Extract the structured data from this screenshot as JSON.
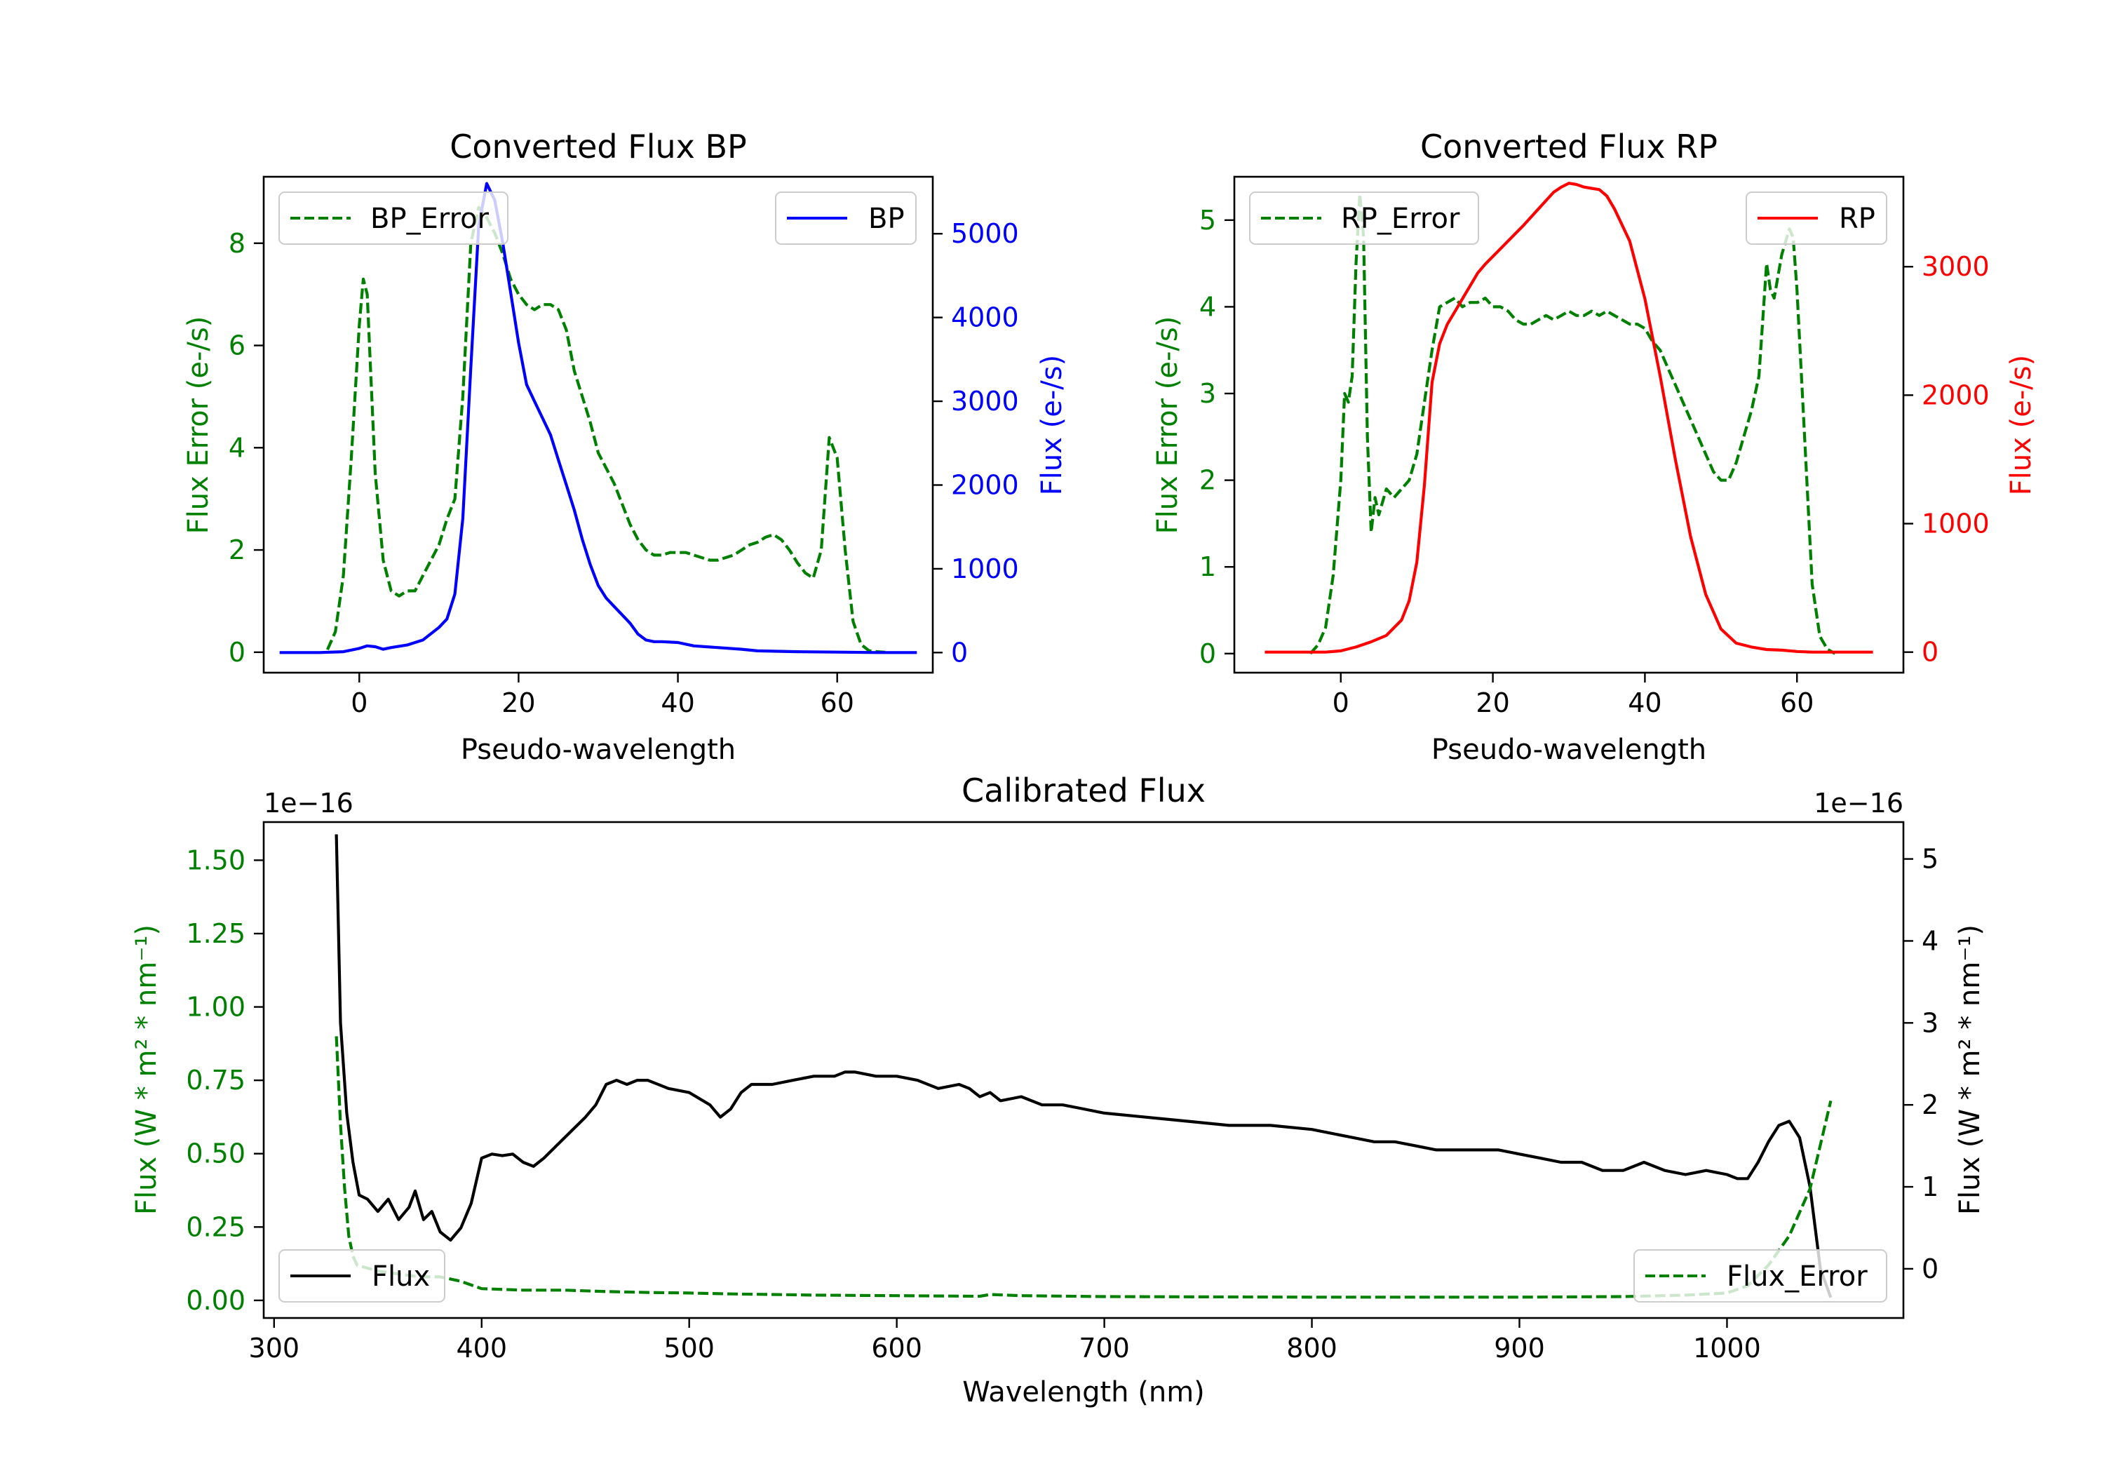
{
  "colors": {
    "error": "#008000",
    "bp": "#0000ff",
    "rp": "#ff0000",
    "flux": "#000000",
    "background": "#ffffff"
  },
  "chart_data": [
    {
      "id": "bp",
      "type": "line",
      "title": "Converted Flux BP",
      "xlabel": "Pseudo-wavelength",
      "ylabel_left": "Flux Error (e-/s)",
      "ylabel_right": "Flux (e-/s)",
      "xlim": [
        -12,
        72
      ],
      "ylim_left": [
        -0.4,
        9.3
      ],
      "ylim_right": [
        -240,
        5680
      ],
      "xticks": [
        0,
        20,
        40,
        60
      ],
      "xtick_labels": [
        "0",
        "20",
        "40",
        "60"
      ],
      "yticks_left": [
        0,
        2,
        4,
        6,
        8
      ],
      "ytick_labels_left": [
        "0",
        "2",
        "4",
        "6",
        "8"
      ],
      "yticks_right": [
        0,
        1000,
        2000,
        3000,
        4000,
        5000
      ],
      "ytick_labels_right": [
        "0",
        "1000",
        "2000",
        "3000",
        "4000",
        "5000"
      ],
      "legend_left": "top-left",
      "legend_right": "top-right",
      "series": [
        {
          "name": "BP_Error",
          "axis": "left",
          "style": "dashed",
          "color": "#008000",
          "x": [
            -4,
            -3,
            -2,
            -1,
            0,
            0.5,
            1,
            2,
            3,
            4,
            5,
            6,
            7,
            8,
            9,
            10,
            11,
            12,
            13,
            14,
            15,
            16,
            17,
            18,
            19,
            20,
            21,
            22,
            23,
            24,
            25,
            26,
            27,
            28,
            29,
            30,
            31,
            32,
            33,
            34,
            35,
            36,
            37,
            38,
            39,
            40,
            41,
            42,
            43,
            44,
            45,
            46,
            47,
            48,
            49,
            50,
            51,
            52,
            53,
            54,
            55,
            56,
            57,
            58,
            59,
            60,
            61,
            62,
            63,
            64,
            65,
            66
          ],
          "y": [
            0.05,
            0.4,
            1.5,
            3.8,
            6.4,
            7.3,
            7.0,
            3.5,
            1.8,
            1.2,
            1.1,
            1.2,
            1.2,
            1.5,
            1.8,
            2.1,
            2.6,
            3.0,
            5.0,
            8.0,
            8.7,
            8.5,
            8.2,
            7.8,
            7.3,
            7.0,
            6.8,
            6.7,
            6.8,
            6.8,
            6.7,
            6.3,
            5.5,
            5.0,
            4.5,
            3.9,
            3.6,
            3.3,
            2.9,
            2.5,
            2.2,
            2.0,
            1.9,
            1.9,
            1.95,
            1.95,
            1.95,
            1.9,
            1.85,
            1.8,
            1.8,
            1.85,
            1.9,
            2.0,
            2.1,
            2.15,
            2.25,
            2.3,
            2.2,
            2.0,
            1.75,
            1.55,
            1.45,
            2.0,
            4.2,
            3.8,
            2.0,
            0.6,
            0.15,
            0.03,
            0.01,
            0.0
          ]
        },
        {
          "name": "BP",
          "axis": "right",
          "style": "solid",
          "color": "#0000ff",
          "x": [
            -10,
            -5,
            -2,
            0,
            1,
            2,
            3,
            4,
            6,
            8,
            10,
            11,
            12,
            13,
            14,
            15,
            16,
            17,
            18,
            19,
            20,
            21,
            22,
            23,
            24,
            25,
            26,
            27,
            28,
            29,
            30,
            31,
            32,
            33,
            34,
            35,
            36,
            37,
            38,
            40,
            42,
            45,
            48,
            50,
            55,
            60,
            65,
            70
          ],
          "y": [
            0,
            0,
            10,
            50,
            80,
            70,
            40,
            60,
            90,
            150,
            300,
            400,
            700,
            1600,
            3400,
            5100,
            5600,
            5400,
            4900,
            4300,
            3700,
            3200,
            3000,
            2800,
            2600,
            2300,
            2000,
            1700,
            1350,
            1050,
            800,
            650,
            550,
            450,
            350,
            220,
            150,
            130,
            130,
            120,
            80,
            60,
            40,
            20,
            10,
            5,
            0,
            0
          ]
        }
      ]
    },
    {
      "id": "rp",
      "type": "line",
      "title": "Converted Flux RP",
      "xlabel": "Pseudo-wavelength",
      "ylabel_left": "Flux Error (e-/s)",
      "ylabel_right": "Flux (e-/s)",
      "xlim": [
        -14,
        74
      ],
      "ylim_left": [
        -0.22,
        5.5
      ],
      "ylim_right": [
        -160,
        3700
      ],
      "xticks": [
        0,
        20,
        40,
        60
      ],
      "xtick_labels": [
        "0",
        "20",
        "40",
        "60"
      ],
      "yticks_left": [
        0,
        1,
        2,
        3,
        4,
        5
      ],
      "ytick_labels_left": [
        "0",
        "1",
        "2",
        "3",
        "4",
        "5"
      ],
      "yticks_right": [
        0,
        1000,
        2000,
        3000
      ],
      "ytick_labels_right": [
        "0",
        "1000",
        "2000",
        "3000"
      ],
      "legend_left": "top-left",
      "legend_right": "top-right",
      "series": [
        {
          "name": "RP_Error",
          "axis": "left",
          "style": "dashed",
          "color": "#008000",
          "x": [
            -4,
            -3,
            -2,
            -1,
            0,
            0.5,
            1,
            1.5,
            2,
            2.5,
            3,
            3.5,
            4,
            4.5,
            5,
            6,
            7,
            8,
            9,
            10,
            11,
            12,
            13,
            14,
            15,
            16,
            17,
            18,
            19,
            20,
            21,
            22,
            23,
            24,
            25,
            26,
            27,
            28,
            29,
            30,
            31,
            32,
            33,
            34,
            35,
            36,
            37,
            38,
            39,
            40,
            41,
            42,
            43,
            44,
            45,
            46,
            47,
            48,
            49,
            50,
            51,
            52,
            53,
            54,
            55,
            56,
            56.5,
            57,
            58,
            59,
            59.5,
            60,
            61,
            62,
            63,
            64,
            65
          ],
          "y": [
            0.0,
            0.1,
            0.3,
            0.9,
            2.0,
            3.0,
            2.9,
            3.2,
            4.5,
            5.3,
            4.8,
            2.5,
            1.4,
            1.8,
            1.6,
            1.9,
            1.8,
            1.9,
            2.0,
            2.3,
            2.9,
            3.5,
            4.0,
            4.05,
            4.1,
            4.0,
            4.05,
            4.05,
            4.1,
            4.0,
            4.0,
            3.95,
            3.85,
            3.8,
            3.8,
            3.85,
            3.9,
            3.85,
            3.9,
            3.95,
            3.9,
            3.9,
            3.95,
            3.9,
            3.95,
            3.9,
            3.85,
            3.8,
            3.8,
            3.75,
            3.6,
            3.5,
            3.3,
            3.1,
            2.9,
            2.7,
            2.5,
            2.3,
            2.1,
            2.0,
            2.0,
            2.2,
            2.5,
            2.8,
            3.2,
            4.5,
            4.2,
            4.1,
            4.6,
            4.9,
            4.8,
            4.2,
            2.5,
            0.8,
            0.2,
            0.05,
            0.0
          ]
        },
        {
          "name": "RP",
          "axis": "right",
          "style": "solid",
          "color": "#ff0000",
          "x": [
            -10,
            -2,
            0,
            2,
            4,
            6,
            8,
            9,
            10,
            11,
            12,
            13,
            14,
            15,
            16,
            17,
            18,
            19,
            20,
            22,
            24,
            26,
            28,
            29,
            30,
            31,
            32,
            33,
            34,
            35,
            36,
            38,
            40,
            42,
            44,
            46,
            48,
            50,
            52,
            54,
            56,
            58,
            60,
            62,
            65,
            70
          ],
          "y": [
            0,
            0,
            10,
            40,
            80,
            130,
            250,
            400,
            700,
            1300,
            2100,
            2400,
            2550,
            2650,
            2750,
            2850,
            2950,
            3020,
            3080,
            3200,
            3320,
            3450,
            3580,
            3620,
            3650,
            3640,
            3620,
            3610,
            3600,
            3550,
            3450,
            3200,
            2750,
            2150,
            1500,
            900,
            450,
            180,
            70,
            40,
            20,
            15,
            5,
            0,
            0,
            0
          ]
        }
      ]
    },
    {
      "id": "calibrated",
      "type": "line",
      "title": "Calibrated Flux",
      "xlabel": "Wavelength (nm)",
      "ylabel_left": "Flux (W * m² * nm⁻¹)",
      "ylabel_right": "Flux (W * m² * nm⁻¹)",
      "scale_left": "1e−16",
      "scale_right": "1e−16",
      "xlim": [
        295,
        1085
      ],
      "ylim_left": [
        -0.06,
        1.63
      ],
      "ylim_right": [
        -0.6,
        5.45
      ],
      "xticks": [
        300,
        400,
        500,
        600,
        700,
        800,
        900,
        1000
      ],
      "xtick_labels": [
        "300",
        "400",
        "500",
        "600",
        "700",
        "800",
        "900",
        "1000"
      ],
      "yticks_left": [
        0,
        0.25,
        0.5,
        0.75,
        1.0,
        1.25,
        1.5
      ],
      "ytick_labels_left": [
        "0.00",
        "0.25",
        "0.50",
        "0.75",
        "1.00",
        "1.25",
        "1.50"
      ],
      "yticks_right": [
        0,
        1,
        2,
        3,
        4,
        5
      ],
      "ytick_labels_right": [
        "0",
        "1",
        "2",
        "3",
        "4",
        "5"
      ],
      "legend_left": "bottom-left",
      "legend_right": "bottom-right",
      "series": [
        {
          "name": "Flux",
          "axis": "right",
          "style": "solid",
          "color": "#000000",
          "x": [
            330,
            332,
            335,
            338,
            341,
            345,
            350,
            355,
            360,
            365,
            368,
            372,
            376,
            380,
            385,
            390,
            395,
            400,
            405,
            410,
            415,
            420,
            425,
            430,
            440,
            450,
            455,
            460,
            465,
            470,
            475,
            480,
            490,
            500,
            510,
            515,
            520,
            525,
            530,
            540,
            550,
            560,
            570,
            575,
            580,
            590,
            600,
            610,
            620,
            630,
            635,
            640,
            645,
            650,
            660,
            670,
            680,
            690,
            700,
            720,
            740,
            760,
            780,
            800,
            810,
            820,
            830,
            840,
            850,
            860,
            870,
            880,
            890,
            900,
            910,
            920,
            930,
            940,
            950,
            960,
            970,
            980,
            990,
            1000,
            1005,
            1010,
            1015,
            1020,
            1025,
            1030,
            1035,
            1040,
            1045,
            1050
          ],
          "y": [
            5.3,
            3.0,
            1.9,
            1.3,
            0.9,
            0.85,
            0.7,
            0.85,
            0.6,
            0.75,
            0.95,
            0.6,
            0.7,
            0.45,
            0.35,
            0.5,
            0.8,
            1.35,
            1.4,
            1.38,
            1.4,
            1.3,
            1.25,
            1.35,
            1.6,
            1.85,
            2.0,
            2.25,
            2.3,
            2.25,
            2.3,
            2.3,
            2.2,
            2.15,
            2.0,
            1.85,
            1.95,
            2.15,
            2.25,
            2.25,
            2.3,
            2.35,
            2.35,
            2.4,
            2.4,
            2.35,
            2.35,
            2.3,
            2.2,
            2.25,
            2.2,
            2.1,
            2.15,
            2.05,
            2.1,
            2.0,
            2.0,
            1.95,
            1.9,
            1.85,
            1.8,
            1.75,
            1.75,
            1.7,
            1.65,
            1.6,
            1.55,
            1.55,
            1.5,
            1.45,
            1.45,
            1.45,
            1.45,
            1.4,
            1.35,
            1.3,
            1.3,
            1.2,
            1.2,
            1.3,
            1.2,
            1.15,
            1.2,
            1.15,
            1.1,
            1.1,
            1.3,
            1.55,
            1.75,
            1.8,
            1.6,
            1.0,
            0.0,
            -0.35
          ]
        },
        {
          "name": "Flux_Error",
          "axis": "left",
          "style": "dashed",
          "color": "#008000",
          "x": [
            330,
            332,
            334,
            336,
            338,
            340,
            345,
            350,
            360,
            370,
            380,
            390,
            400,
            420,
            440,
            460,
            480,
            500,
            520,
            540,
            560,
            580,
            600,
            620,
            640,
            645,
            660,
            700,
            750,
            800,
            850,
            900,
            950,
            980,
            1000,
            1010,
            1020,
            1030,
            1040,
            1050
          ],
          "y": [
            0.9,
            0.6,
            0.38,
            0.22,
            0.15,
            0.12,
            0.11,
            0.1,
            0.09,
            0.08,
            0.08,
            0.065,
            0.04,
            0.035,
            0.035,
            0.03,
            0.027,
            0.025,
            0.022,
            0.02,
            0.018,
            0.017,
            0.016,
            0.015,
            0.014,
            0.02,
            0.016,
            0.013,
            0.012,
            0.011,
            0.011,
            0.011,
            0.013,
            0.018,
            0.025,
            0.05,
            0.12,
            0.22,
            0.38,
            0.68
          ]
        }
      ]
    }
  ]
}
